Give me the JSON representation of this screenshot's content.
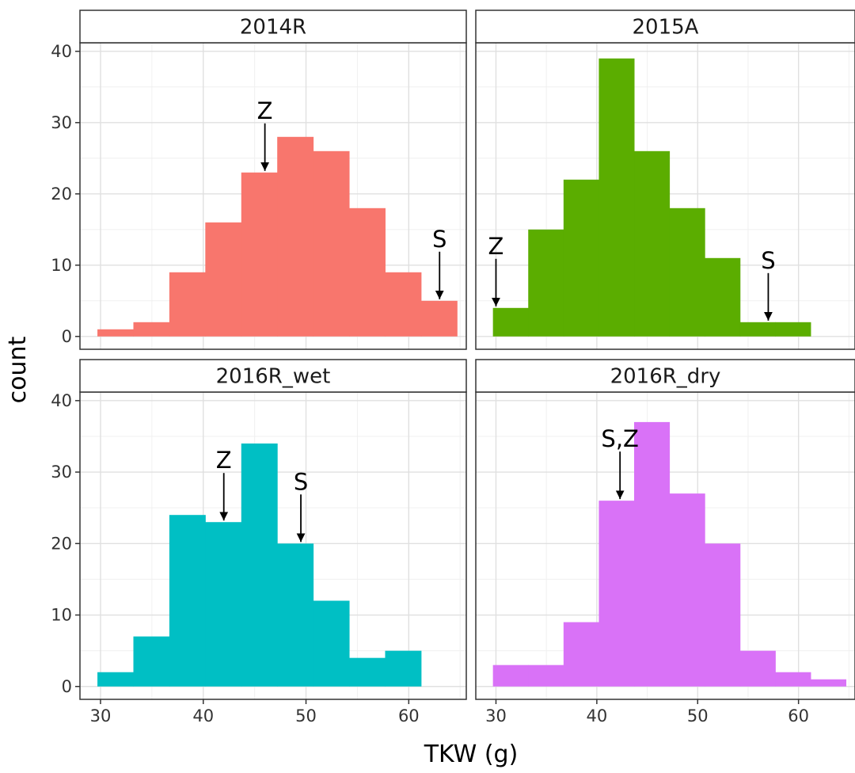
{
  "chart_data": {
    "type": "histogram",
    "xlabel": "TKW (g)",
    "ylabel": "count",
    "xlim": [
      28.0,
      65.6
    ],
    "ylim": [
      -1.8,
      41.2
    ],
    "x_ticks": [
      30,
      40,
      50,
      60
    ],
    "y_ticks": [
      0,
      10,
      20,
      30,
      40
    ],
    "grid": true,
    "bin_edges": [
      29.7,
      33.2,
      36.7,
      40.2,
      43.7,
      47.2,
      50.7,
      54.2,
      57.7,
      61.2,
      64.7
    ],
    "panels": [
      {
        "name": "2014R",
        "color": "#F8766D",
        "counts": [
          1,
          2,
          9,
          16,
          23,
          28,
          26,
          18,
          9,
          5
        ],
        "annotations": [
          {
            "label": "Z",
            "x": 46.0,
            "y": 23
          },
          {
            "label": "S",
            "x": 63.0,
            "y": 5
          }
        ]
      },
      {
        "name": "2015A",
        "color": "#5BAD00",
        "counts": [
          4,
          15,
          22,
          39,
          26,
          18,
          11,
          2,
          2,
          0
        ],
        "annotations": [
          {
            "label": "Z",
            "x": 30.0,
            "y": 4
          },
          {
            "label": "S",
            "x": 57.0,
            "y": 2
          }
        ]
      },
      {
        "name": "2016R_wet",
        "color": "#00BFC4",
        "counts": [
          2,
          7,
          24,
          23,
          34,
          20,
          12,
          4,
          5,
          0
        ],
        "annotations": [
          {
            "label": "Z",
            "x": 42.0,
            "y": 23
          },
          {
            "label": "S",
            "x": 49.5,
            "y": 20
          }
        ]
      },
      {
        "name": "2016R_dry",
        "color": "#D972F7",
        "counts": [
          3,
          3,
          9,
          26,
          37,
          27,
          20,
          5,
          2,
          1
        ],
        "annotations": [
          {
            "label": "S,Z",
            "x": 42.3,
            "y": 26
          }
        ]
      }
    ]
  }
}
